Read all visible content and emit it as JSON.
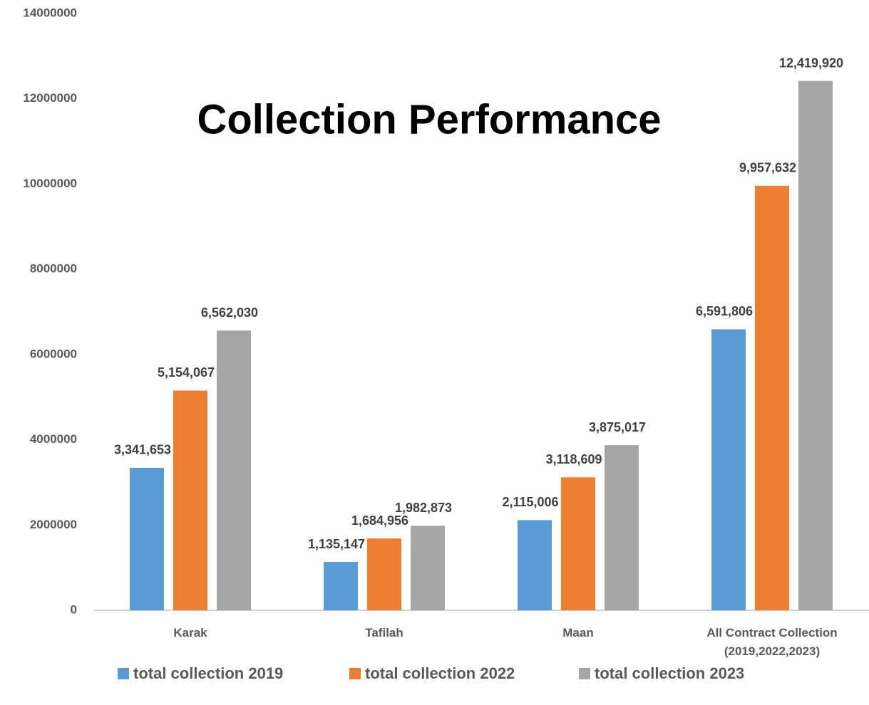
{
  "chart_data": {
    "type": "bar",
    "title": "Collection Performance",
    "categories": [
      "Karak",
      "Tafilah",
      "Maan",
      "All Contract Collection (2019,2022,2023)"
    ],
    "series": [
      {
        "name": "total collection 2019",
        "color": "#5b9bd5",
        "values": [
          3341653,
          1135147,
          2115006,
          6591806
        ],
        "value_labels": [
          "3,341,653",
          "1,135,147",
          "2,115,006",
          "6,591,806"
        ]
      },
      {
        "name": "total collection 2022",
        "color": "#ed7d31",
        "values": [
          5154067,
          1684956,
          3118609,
          9957632
        ],
        "value_labels": [
          "5,154,067",
          "1,684,956",
          "3,118,609",
          "9,957,632"
        ]
      },
      {
        "name": "total collection 2023",
        "color": "#a5a5a5",
        "values": [
          6562030,
          1982873,
          3875017,
          12419920
        ],
        "value_labels": [
          "6,562,030",
          "1,982,873",
          "3,875,017",
          "12,419,920"
        ]
      }
    ],
    "ylim": [
      0,
      14000000
    ],
    "yticks": [
      0,
      2000000,
      4000000,
      6000000,
      8000000,
      10000000,
      12000000,
      14000000
    ],
    "grid": false,
    "legend": "bottom"
  }
}
